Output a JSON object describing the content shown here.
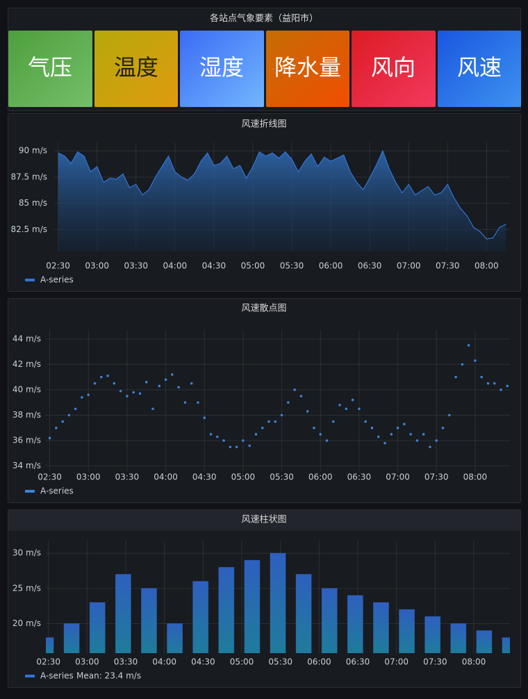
{
  "header": {
    "title": "各站点气象要素（益阳市）",
    "tiles": [
      "气压",
      "温度",
      "湿度",
      "降水量",
      "风向",
      "风速"
    ]
  },
  "chart_data": [
    {
      "type": "line",
      "title": "风速折线图",
      "x": [
        "02:30",
        "02:35",
        "02:40",
        "02:45",
        "02:50",
        "02:55",
        "03:00",
        "03:05",
        "03:10",
        "03:15",
        "03:20",
        "03:25",
        "03:30",
        "03:35",
        "03:40",
        "03:45",
        "03:50",
        "03:55",
        "04:00",
        "04:05",
        "04:10",
        "04:15",
        "04:20",
        "04:25",
        "04:30",
        "04:35",
        "04:40",
        "04:45",
        "04:50",
        "04:55",
        "05:00",
        "05:05",
        "05:10",
        "05:15",
        "05:20",
        "05:25",
        "05:30",
        "05:35",
        "05:40",
        "05:45",
        "05:50",
        "05:55",
        "06:00",
        "06:05",
        "06:10",
        "06:15",
        "06:20",
        "06:25",
        "06:30",
        "06:35",
        "06:40",
        "06:45",
        "06:50",
        "06:55",
        "07:00",
        "07:05",
        "07:10",
        "07:15",
        "07:20",
        "07:25",
        "07:30",
        "07:35",
        "07:40",
        "07:45",
        "07:50",
        "07:55",
        "08:00",
        "08:05",
        "08:10",
        "08:15"
      ],
      "series": [
        {
          "name": "A-series",
          "color": "#3274d9",
          "values": [
            89.8,
            89.5,
            88.8,
            89.9,
            89.5,
            88.0,
            88.5,
            87.0,
            87.4,
            87.3,
            87.8,
            86.5,
            86.8,
            85.8,
            86.3,
            87.5,
            88.5,
            89.5,
            88.0,
            87.5,
            87.2,
            87.8,
            89.0,
            89.8,
            88.6,
            88.8,
            89.5,
            88.3,
            88.6,
            87.4,
            88.5,
            89.9,
            89.5,
            89.8,
            89.3,
            89.9,
            89.2,
            88.0,
            89.0,
            89.7,
            88.5,
            89.4,
            89.0,
            89.3,
            89.6,
            88.0,
            87.0,
            86.3,
            87.4,
            88.6,
            90.0,
            88.3,
            87.0,
            86.0,
            86.8,
            85.8,
            86.2,
            86.6,
            85.8,
            86.0,
            86.8,
            85.5,
            84.5,
            83.8,
            82.7,
            82.3,
            81.6,
            81.7,
            82.7,
            83.0
          ]
        }
      ],
      "xlim": [
        "02:27",
        "08:18"
      ],
      "xticks": [
        "02:30",
        "03:00",
        "03:30",
        "04:00",
        "04:30",
        "05:00",
        "05:30",
        "06:00",
        "06:30",
        "07:00",
        "07:30",
        "08:00"
      ],
      "ylim": [
        80.4,
        90.8
      ],
      "yticks": [
        {
          "value": 82.5,
          "label": "82.5 m/s"
        },
        {
          "value": 85,
          "label": "85 m/s"
        },
        {
          "value": 87.5,
          "label": "87.5 m/s"
        },
        {
          "value": 90,
          "label": "90 m/s"
        }
      ],
      "grid": true
    },
    {
      "type": "scatter",
      "title": "风速散点图",
      "x": [
        "02:30",
        "02:35",
        "02:40",
        "02:45",
        "02:50",
        "02:55",
        "03:00",
        "03:05",
        "03:10",
        "03:15",
        "03:20",
        "03:25",
        "03:30",
        "03:35",
        "03:40",
        "03:45",
        "03:50",
        "03:55",
        "04:00",
        "04:05",
        "04:10",
        "04:15",
        "04:20",
        "04:25",
        "04:30",
        "04:35",
        "04:40",
        "04:45",
        "04:50",
        "04:55",
        "05:00",
        "05:05",
        "05:10",
        "05:15",
        "05:20",
        "05:25",
        "05:30",
        "05:35",
        "05:40",
        "05:45",
        "05:50",
        "05:55",
        "06:00",
        "06:05",
        "06:10",
        "06:15",
        "06:20",
        "06:25",
        "06:30",
        "06:35",
        "06:40",
        "06:45",
        "06:50",
        "06:55",
        "07:00",
        "07:05",
        "07:10",
        "07:15",
        "07:20",
        "07:25",
        "07:30",
        "07:35",
        "07:40",
        "07:45",
        "07:50",
        "07:55",
        "08:00",
        "08:05",
        "08:10",
        "08:15",
        "08:20",
        "08:25"
      ],
      "series": [
        {
          "name": "A-series",
          "color": "#3a82d8",
          "values": [
            36.2,
            37.0,
            37.5,
            38.0,
            38.5,
            39.4,
            39.6,
            40.5,
            41.0,
            41.1,
            40.5,
            39.9,
            39.5,
            39.8,
            39.7,
            40.6,
            38.5,
            40.3,
            40.8,
            41.2,
            40.2,
            39.0,
            40.5,
            39.0,
            37.8,
            36.5,
            36.3,
            36.0,
            35.5,
            35.5,
            36.0,
            35.6,
            36.5,
            37.0,
            37.5,
            37.5,
            38.0,
            39.0,
            40.0,
            39.5,
            38.3,
            37.0,
            36.5,
            36.0,
            37.5,
            38.8,
            38.5,
            39.2,
            38.5,
            37.5,
            37.0,
            36.3,
            35.8,
            36.5,
            37.0,
            37.3,
            36.5,
            36.0,
            36.5,
            35.5,
            36.0,
            37.0,
            38.0,
            41.0,
            42.0,
            43.5,
            42.3,
            41.0,
            40.5,
            40.5,
            40.0,
            40.3
          ]
        }
      ],
      "xlim": [
        "02:27",
        "08:27"
      ],
      "xticks": [
        "02:30",
        "03:00",
        "03:30",
        "04:00",
        "04:30",
        "05:00",
        "05:30",
        "06:00",
        "06:30",
        "07:00",
        "07:30",
        "08:00"
      ],
      "ylim": [
        33.6,
        44.7
      ],
      "yticks": [
        {
          "value": 34,
          "label": "34 m/s"
        },
        {
          "value": 36,
          "label": "36 m/s"
        },
        {
          "value": 38,
          "label": "38 m/s"
        },
        {
          "value": 40,
          "label": "40 m/s"
        },
        {
          "value": 42,
          "label": "42 m/s"
        },
        {
          "value": 44,
          "label": "44 m/s"
        }
      ],
      "grid": true
    },
    {
      "type": "bar",
      "title": "风速柱状图",
      "x": [
        "02:28",
        "02:48",
        "03:08",
        "03:28",
        "03:48",
        "04:08",
        "04:28",
        "04:48",
        "05:08",
        "05:28",
        "05:48",
        "06:08",
        "06:28",
        "06:48",
        "07:08",
        "07:28",
        "07:48",
        "08:08",
        "08:28"
      ],
      "series": [
        {
          "name": "A-series",
          "color": "#3274d9",
          "values": [
            18,
            20,
            23,
            27,
            25,
            20,
            26,
            28,
            29,
            30,
            27,
            25,
            24,
            23,
            22,
            21,
            20,
            19,
            18
          ]
        }
      ],
      "legend_stat": "Mean: 23.4 m/s",
      "xlim": [
        "02:28",
        "08:28"
      ],
      "xticks": [
        "02:30",
        "03:00",
        "03:30",
        "04:00",
        "04:30",
        "05:00",
        "05:30",
        "06:00",
        "06:30",
        "07:00",
        "07:30",
        "08:00"
      ],
      "ylim": [
        15.8,
        31.8
      ],
      "yticks": [
        {
          "value": 20,
          "label": "20 m/s"
        },
        {
          "value": 25,
          "label": "25 m/s"
        },
        {
          "value": 30,
          "label": "30 m/s"
        }
      ],
      "grid": true
    }
  ]
}
